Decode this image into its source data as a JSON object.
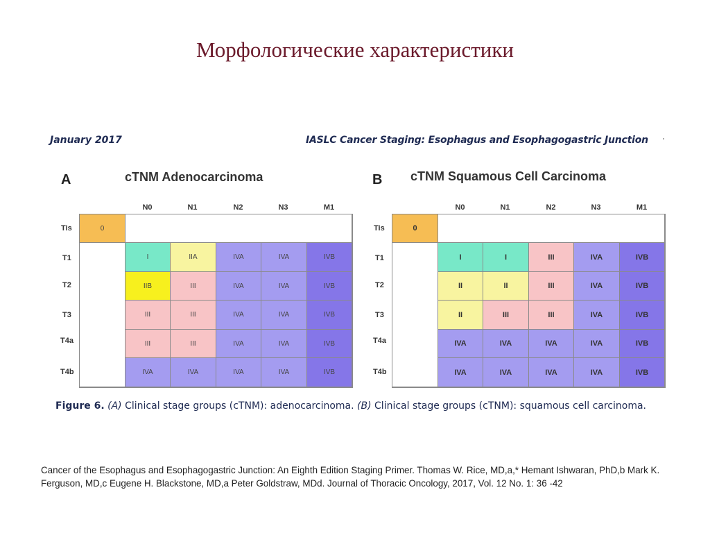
{
  "slide": {
    "title": "Морфологические характеристики"
  },
  "figure": {
    "header_left": "January 2017",
    "header_right": "IASLC Cancer Staging: Esophagus and Esophagogastric Junction",
    "column_headers": [
      "N0",
      "N1",
      "N2",
      "N3",
      "M1"
    ],
    "row_labels": [
      "Tis",
      "T1",
      "T2",
      "T3",
      "T4a",
      "T4b"
    ],
    "panel_a": {
      "letter": "A",
      "title": "cTNM Adenocarcinoma",
      "tis_stage": "0",
      "rows": [
        [
          "I",
          "IIA",
          "IVA",
          "IVA",
          "IVB"
        ],
        [
          "IIB",
          "III",
          "IVA",
          "IVA",
          "IVB"
        ],
        [
          "III",
          "III",
          "IVA",
          "IVA",
          "IVB"
        ],
        [
          "III",
          "III",
          "IVA",
          "IVA",
          "IVB"
        ],
        [
          "IVA",
          "IVA",
          "IVA",
          "IVA",
          "IVB"
        ]
      ]
    },
    "panel_b": {
      "letter": "B",
      "title": "cTNM Squamous Cell Carcinoma",
      "tis_stage": "0",
      "rows": [
        [
          "I",
          "I",
          "III",
          "IVA",
          "IVB"
        ],
        [
          "II",
          "II",
          "III",
          "IVA",
          "IVB"
        ],
        [
          "II",
          "III",
          "III",
          "IVA",
          "IVB"
        ],
        [
          "IVA",
          "IVA",
          "IVA",
          "IVA",
          "IVB"
        ],
        [
          "IVA",
          "IVA",
          "IVA",
          "IVA",
          "IVB"
        ]
      ]
    },
    "caption": {
      "label": "Figure 6.",
      "a_marker": "(A)",
      "a_text": " Clinical stage groups (cTNM): adenocarcinoma. ",
      "b_marker": "(B)",
      "b_text": " Clinical stage groups (cTNM): squamous cell carcinoma."
    },
    "stage_colors": {
      "0": "#f6bd54",
      "I": "#78e8c8",
      "IIA": "#f8f4a0",
      "IIB": "#f7f01e",
      "II": "#f8f4a0",
      "III": "#f8c4c6",
      "IVA": "#a49cf0",
      "IVB": "#8576e8"
    }
  },
  "citation": {
    "text": "Cancer of the Esophagus and Esophagogastric Junction: An Eighth Edition Staging Primer. Thomas W. Rice, MD,a,* Hemant Ishwaran, PhD,b Mark K. Ferguson, MD,c Eugene H. Blackstone, MD,a Peter Goldstraw, MDd.  Journal of Thoracic Oncology, 2017, Vol. 12 No. 1: 36 -42"
  }
}
